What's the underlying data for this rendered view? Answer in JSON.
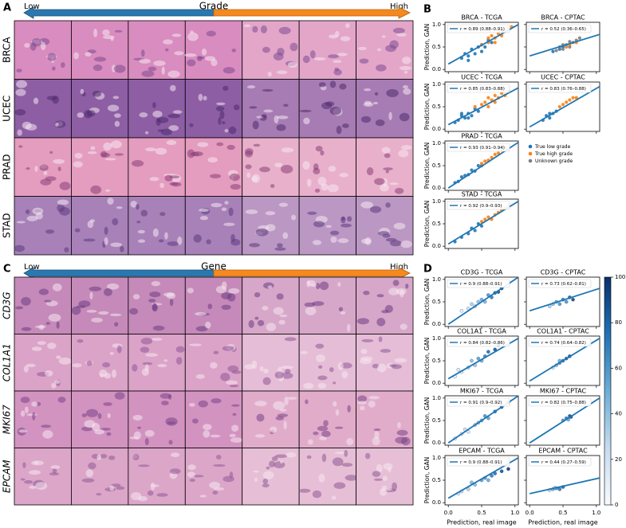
{
  "figure": {
    "A": {
      "label": "A",
      "low": "Low",
      "title": "Grade",
      "high": "High",
      "rows": [
        "BRCA",
        "UCEC",
        "PRAD",
        "STAD"
      ]
    },
    "B": {
      "label": "B"
    },
    "C": {
      "label": "C",
      "low": "Low",
      "title": "Gene",
      "high": "High",
      "rows": [
        "CD3G",
        "COL1A1",
        "MKI67",
        "EPCAM"
      ]
    },
    "D": {
      "label": "D"
    }
  },
  "axes": {
    "xlim": [
      -0.05,
      1.05
    ],
    "ylim": [
      -0.05,
      1.05
    ],
    "xticks": [
      {
        "value": 0,
        "label": "0.0"
      },
      {
        "value": 0.5,
        "label": "0.5"
      },
      {
        "value": 1,
        "label": "1.0"
      }
    ],
    "yticks": [
      {
        "value": 0,
        "label": "0.0"
      },
      {
        "value": 0.5,
        "label": "0.5"
      },
      {
        "value": 1,
        "label": "1.0"
      }
    ],
    "xlabel": "Prediction, real image",
    "ylabel": "Prediction, GAN"
  },
  "colorbar": {
    "lim": [
      0,
      100
    ],
    "ticks": [
      0,
      20,
      40,
      60,
      80,
      100
    ]
  },
  "chart_data": [
    {
      "type": "scatter",
      "title": "BRCA - TCGA",
      "annotation": "r = 0.89 (0.88–0.91)",
      "fit": {
        "x": [
          0,
          1.05
        ],
        "y": [
          0.12,
          1.0
        ]
      },
      "series": [
        {
          "name": "True low grade",
          "color": "#1f77b4",
          "x": [
            0.2,
            0.3,
            0.35,
            0.4,
            0.45,
            0.5,
            0.55,
            0.6,
            0.3,
            0.25,
            0.5,
            0.65
          ],
          "values": [
            0.25,
            0.3,
            0.45,
            0.35,
            0.5,
            0.55,
            0.5,
            0.65,
            0.2,
            0.35,
            0.4,
            0.6
          ]
        },
        {
          "name": "True high grade",
          "color": "#ff7f0e",
          "x": [
            0.5,
            0.6,
            0.65,
            0.7,
            0.75,
            0.8,
            0.85,
            0.9,
            0.95,
            0.7,
            0.6,
            0.8
          ],
          "values": [
            0.55,
            0.6,
            0.75,
            0.7,
            0.8,
            0.75,
            0.85,
            0.9,
            0.95,
            0.6,
            0.7,
            0.85
          ]
        }
      ]
    },
    {
      "type": "scatter",
      "title": "BRCA - CPTAC",
      "annotation": "r = 0.52 (0.36–0.65)",
      "fit": {
        "x": [
          0,
          1.05
        ],
        "y": [
          0.3,
          0.78
        ]
      },
      "series": [
        {
          "name": "True low grade",
          "color": "#1f77b4",
          "x": [
            0.35,
            0.45,
            0.5
          ],
          "values": [
            0.4,
            0.45,
            0.5
          ]
        },
        {
          "name": "True high grade",
          "color": "#ff7f0e",
          "x": [
            0.55,
            0.6,
            0.7
          ],
          "values": [
            0.5,
            0.55,
            0.6
          ]
        },
        {
          "name": "Unknown grade",
          "color": "#7f7f7f",
          "x": [
            0.4,
            0.45,
            0.5,
            0.55,
            0.6,
            0.65,
            0.7,
            0.75,
            0.5,
            0.6
          ],
          "values": [
            0.42,
            0.5,
            0.45,
            0.55,
            0.5,
            0.6,
            0.65,
            0.7,
            0.55,
            0.62
          ]
        }
      ]
    },
    {
      "type": "scatter",
      "title": "UCEC - TCGA",
      "annotation": "r = 0.85 (0.83–0.88)",
      "fit": {
        "x": [
          0,
          1.05
        ],
        "y": [
          0.1,
          0.92
        ]
      },
      "series": [
        {
          "name": "True low grade",
          "color": "#1f77b4",
          "x": [
            0.1,
            0.15,
            0.2,
            0.25,
            0.3,
            0.35,
            0.4,
            0.45,
            0.3,
            0.2
          ],
          "values": [
            0.15,
            0.2,
            0.3,
            0.25,
            0.35,
            0.3,
            0.45,
            0.4,
            0.25,
            0.35
          ]
        },
        {
          "name": "True high grade",
          "color": "#ff7f0e",
          "x": [
            0.4,
            0.5,
            0.55,
            0.6,
            0.65,
            0.7,
            0.75,
            0.8,
            0.85,
            0.9,
            0.7,
            0.6
          ],
          "values": [
            0.5,
            0.55,
            0.6,
            0.7,
            0.65,
            0.75,
            0.7,
            0.8,
            0.75,
            0.85,
            0.6,
            0.5
          ]
        }
      ]
    },
    {
      "type": "scatter",
      "title": "UCEC - CPTAC",
      "annotation": "r = 0.83 (0.76–0.88)",
      "fit": {
        "x": [
          0,
          1.05
        ],
        "y": [
          0.05,
          0.95
        ]
      },
      "series": [
        {
          "name": "True low grade",
          "color": "#1f77b4",
          "x": [
            0.2,
            0.25,
            0.3,
            0.35,
            0.4,
            0.3
          ],
          "values": [
            0.2,
            0.3,
            0.25,
            0.35,
            0.4,
            0.35
          ]
        },
        {
          "name": "True high grade",
          "color": "#ff7f0e",
          "x": [
            0.45,
            0.5,
            0.55,
            0.6,
            0.65,
            0.7
          ],
          "values": [
            0.5,
            0.55,
            0.6,
            0.65,
            0.7,
            0.7
          ]
        }
      ]
    },
    {
      "type": "scatter",
      "title": "PRAD - TCGA",
      "annotation": "r = 0.93 (0.91–0.94)",
      "fit": {
        "x": [
          0,
          1.05
        ],
        "y": [
          0.0,
          1.02
        ]
      },
      "series": [
        {
          "name": "True low grade",
          "color": "#1f77b4",
          "x": [
            0.1,
            0.15,
            0.2,
            0.25,
            0.3,
            0.35,
            0.4,
            0.45,
            0.5
          ],
          "values": [
            0.12,
            0.15,
            0.25,
            0.28,
            0.3,
            0.4,
            0.38,
            0.5,
            0.5
          ]
        },
        {
          "name": "True high grade",
          "color": "#ff7f0e",
          "x": [
            0.5,
            0.55,
            0.6,
            0.65,
            0.7,
            0.75,
            0.8,
            0.85
          ],
          "values": [
            0.55,
            0.6,
            0.62,
            0.68,
            0.75,
            0.78,
            0.85,
            0.9
          ]
        }
      ]
    },
    {
      "type": "scatter",
      "title": "STAD - TCGA",
      "annotation": "r = 0.92 (0.9–0.93)",
      "fit": {
        "x": [
          0,
          1.05
        ],
        "y": [
          0.05,
          1.0
        ]
      },
      "series": [
        {
          "name": "True low grade",
          "color": "#1f77b4",
          "x": [
            0.1,
            0.2,
            0.3,
            0.35,
            0.4,
            0.45,
            0.5
          ],
          "values": [
            0.1,
            0.2,
            0.28,
            0.4,
            0.35,
            0.5,
            0.45
          ]
        },
        {
          "name": "True high grade",
          "color": "#ff7f0e",
          "x": [
            0.5,
            0.55,
            0.6,
            0.65,
            0.7,
            0.75,
            0.8,
            0.85,
            0.9
          ],
          "values": [
            0.55,
            0.6,
            0.65,
            0.6,
            0.7,
            0.75,
            0.8,
            0.85,
            0.9
          ]
        }
      ]
    },
    {
      "type": "scatter",
      "title": "CD3G - TCGA",
      "annotation": "r = 0.9 (0.88–0.91)",
      "fit": {
        "x": [
          0,
          1.05
        ],
        "y": [
          0.0,
          1.05
        ]
      },
      "series": [
        {
          "x": [
            0.2,
            0.3,
            0.35,
            0.4,
            0.45,
            0.5,
            0.55,
            0.6,
            0.65,
            0.7,
            0.75,
            0.8
          ],
          "values": [
            0.3,
            0.35,
            0.45,
            0.4,
            0.5,
            0.55,
            0.5,
            0.65,
            0.6,
            0.7,
            0.72,
            0.8
          ],
          "c": [
            10,
            20,
            30,
            25,
            40,
            50,
            45,
            60,
            70,
            80,
            85,
            95
          ]
        }
      ]
    },
    {
      "type": "scatter",
      "title": "CD3G - CPTAC",
      "annotation": "r = 0.73 (0.62–0.81)",
      "fit": {
        "x": [
          0,
          1.05
        ],
        "y": [
          0.3,
          0.8
        ]
      },
      "series": [
        {
          "x": [
            0.3,
            0.35,
            0.4,
            0.45,
            0.5,
            0.55,
            0.6,
            0.65
          ],
          "values": [
            0.4,
            0.45,
            0.5,
            0.45,
            0.55,
            0.5,
            0.6,
            0.55
          ],
          "c": [
            30,
            40,
            50,
            60,
            70,
            60,
            80,
            90
          ]
        }
      ]
    },
    {
      "type": "scatter",
      "title": "COL1A1 - TCGA",
      "annotation": "r = 0.84 (0.82–0.86)",
      "fit": {
        "x": [
          0,
          1.05
        ],
        "y": [
          0.1,
          1.0
        ]
      },
      "series": [
        {
          "x": [
            0.1,
            0.15,
            0.2,
            0.3,
            0.35,
            0.4,
            0.45,
            0.5,
            0.55,
            0.6,
            0.7,
            0.75
          ],
          "values": [
            0.15,
            0.3,
            0.25,
            0.35,
            0.5,
            0.4,
            0.55,
            0.5,
            0.6,
            0.7,
            0.75,
            0.85
          ],
          "c": [
            5,
            15,
            10,
            30,
            40,
            35,
            55,
            50,
            65,
            75,
            85,
            90
          ]
        }
      ]
    },
    {
      "type": "scatter",
      "title": "COL1A1 - CPTAC",
      "annotation": "r = 0.74 (0.64–0.82)",
      "fit": {
        "x": [
          0,
          1.05
        ],
        "y": [
          0.05,
          1.0
        ]
      },
      "series": [
        {
          "x": [
            0.35,
            0.4,
            0.45,
            0.5,
            0.55,
            0.6,
            0.45
          ],
          "values": [
            0.35,
            0.4,
            0.45,
            0.5,
            0.55,
            0.6,
            0.5
          ],
          "c": [
            20,
            40,
            60,
            70,
            80,
            90,
            50
          ]
        }
      ]
    },
    {
      "type": "scatter",
      "title": "MKI67 - TCGA",
      "annotation": "r = 0.91 (0.9–0.92)",
      "fit": {
        "x": [
          0,
          1.05
        ],
        "y": [
          0.0,
          1.05
        ]
      },
      "series": [
        {
          "x": [
            0.1,
            0.2,
            0.25,
            0.3,
            0.4,
            0.45,
            0.5,
            0.55,
            0.6,
            0.7,
            0.8,
            0.9
          ],
          "values": [
            0.1,
            0.2,
            0.3,
            0.25,
            0.4,
            0.45,
            0.5,
            0.6,
            0.55,
            0.7,
            0.8,
            0.9
          ],
          "c": [
            5,
            10,
            20,
            15,
            35,
            40,
            50,
            60,
            55,
            75,
            85,
            95
          ]
        }
      ]
    },
    {
      "type": "scatter",
      "title": "MKI67 - CPTAC",
      "annotation": "r = 0.82 (0.75–0.88)",
      "fit": {
        "x": [
          0,
          1.05
        ],
        "y": [
          0.0,
          1.0
        ]
      },
      "series": [
        {
          "x": [
            0.5,
            0.55,
            0.6,
            0.62,
            0.58
          ],
          "values": [
            0.5,
            0.55,
            0.6,
            0.58,
            0.52
          ],
          "c": [
            60,
            70,
            80,
            90,
            50
          ]
        }
      ]
    },
    {
      "type": "scatter",
      "title": "EPCAM - TCGA",
      "annotation": "r = 0.9 (0.88–0.91)",
      "fit": {
        "x": [
          0,
          1.05
        ],
        "y": [
          0.1,
          1.0
        ]
      },
      "series": [
        {
          "x": [
            0.15,
            0.2,
            0.3,
            0.35,
            0.4,
            0.5,
            0.55,
            0.6,
            0.65,
            0.7,
            0.8,
            0.9
          ],
          "values": [
            0.2,
            0.25,
            0.3,
            0.45,
            0.4,
            0.5,
            0.55,
            0.5,
            0.6,
            0.65,
            0.7,
            0.75
          ],
          "c": [
            10,
            20,
            30,
            45,
            40,
            55,
            60,
            50,
            70,
            75,
            85,
            95
          ]
        }
      ]
    },
    {
      "type": "scatter",
      "title": "EPCAM - CPTAC",
      "annotation": "r = 0.44 (0.27–0.59)",
      "fit": {
        "x": [
          0,
          1.05
        ],
        "y": [
          0.2,
          0.55
        ]
      },
      "series": [
        {
          "x": [
            0.3,
            0.35,
            0.4,
            0.45,
            0.5,
            0.38
          ],
          "values": [
            0.28,
            0.3,
            0.32,
            0.3,
            0.35,
            0.33
          ],
          "c": [
            30,
            50,
            60,
            70,
            80,
            40
          ]
        }
      ]
    }
  ]
}
